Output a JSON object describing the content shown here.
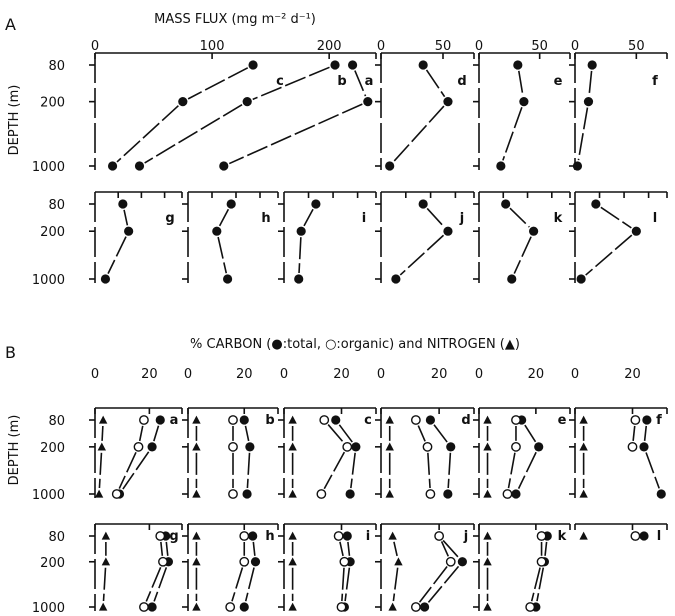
{
  "panel_letters": [
    "A",
    "B"
  ],
  "depth_axis": {
    "label": "DEPTH (m)",
    "ticks": [
      80,
      200,
      1000
    ]
  },
  "chart_data": [
    {
      "type": "line",
      "panel": "A",
      "title": "MASS FLUX (mg m⁻² d⁻¹)",
      "ylabel": "DEPTH (m)",
      "y": [
        80,
        200,
        1000
      ],
      "subplots": [
        {
          "label": "a",
          "xticks": [
            0,
            100,
            200
          ],
          "xlim": [
            0,
            240
          ],
          "series": [
            {
              "values": [
                220,
                233,
                110
              ]
            }
          ]
        },
        {
          "label": "b",
          "xticks": [
            0,
            100,
            200
          ],
          "xlim": [
            0,
            240
          ],
          "series": [
            {
              "values": [
                205,
                130,
                38
              ]
            }
          ]
        },
        {
          "label": "c",
          "xticks": [
            0,
            100,
            200
          ],
          "xlim": [
            0,
            240
          ],
          "series": [
            {
              "values": [
                135,
                75,
                15
              ]
            }
          ]
        },
        {
          "label": "d",
          "xticks": [
            0,
            50
          ],
          "xlim": [
            0,
            75
          ],
          "series": [
            {
              "values": [
                34,
                54,
                7
              ]
            }
          ]
        },
        {
          "label": "e",
          "xticks": [
            0,
            50
          ],
          "xlim": [
            0,
            75
          ],
          "series": [
            {
              "values": [
                32,
                37,
                18
              ]
            }
          ]
        },
        {
          "label": "f",
          "xticks": [
            0,
            50
          ],
          "xlim": [
            0,
            75
          ],
          "series": [
            {
              "values": [
                14,
                11,
                2
              ]
            }
          ]
        },
        {
          "label": "g",
          "xticks": [],
          "xlim": [
            0,
            75
          ],
          "series": [
            {
              "values": [
                24,
                29,
                9
              ]
            }
          ]
        },
        {
          "label": "h",
          "xticks": [],
          "xlim": [
            0,
            75
          ],
          "series": [
            {
              "values": [
                36,
                24,
                33
              ]
            }
          ]
        },
        {
          "label": "i",
          "xticks": [],
          "xlim": [
            0,
            75
          ],
          "series": [
            {
              "values": [
                26,
                14,
                12
              ]
            }
          ]
        },
        {
          "label": "j",
          "xticks": [],
          "xlim": [
            0,
            75
          ],
          "series": [
            {
              "values": [
                34,
                54,
                12
              ]
            }
          ]
        },
        {
          "label": "k",
          "xticks": [],
          "xlim": [
            0,
            75
          ],
          "series": [
            {
              "values": [
                22,
                45,
                27
              ]
            }
          ]
        },
        {
          "label": "l",
          "xticks": [],
          "xlim": [
            0,
            75
          ],
          "series": [
            {
              "values": [
                17,
                50,
                5
              ]
            }
          ]
        }
      ]
    },
    {
      "type": "line",
      "panel": "B",
      "title": "% CARBON (●:total, ○:organic) and NITROGEN (▲)",
      "ylabel": "DEPTH (m)",
      "y": [
        80,
        200,
        1000
      ],
      "xticks": [
        0,
        20
      ],
      "xlim": [
        0,
        32
      ],
      "legend": {
        "total_carbon": "●:total",
        "organic_carbon": "○:organic",
        "nitrogen": "▲"
      },
      "subplots": [
        {
          "label": "a",
          "series": [
            {
              "name": "total",
              "values": [
                24,
                21,
                9
              ]
            },
            {
              "name": "organic",
              "values": [
                18,
                16,
                8
              ]
            },
            {
              "name": "nitrogen",
              "values": [
                3,
                2.5,
                1.5
              ]
            }
          ]
        },
        {
          "label": "b",
          "series": [
            {
              "name": "total",
              "values": [
                20,
                22,
                21
              ]
            },
            {
              "name": "organic",
              "values": [
                16,
                16,
                16
              ]
            },
            {
              "name": "nitrogen",
              "values": [
                3,
                3,
                3
              ]
            }
          ]
        },
        {
          "label": "c",
          "series": [
            {
              "name": "total",
              "values": [
                18,
                25,
                23
              ]
            },
            {
              "name": "organic",
              "values": [
                14,
                22,
                13
              ]
            },
            {
              "name": "nitrogen",
              "values": [
                3,
                3,
                3
              ]
            }
          ]
        },
        {
          "label": "d",
          "series": [
            {
              "name": "total",
              "values": [
                17,
                24,
                23
              ]
            },
            {
              "name": "organic",
              "values": [
                12,
                16,
                17
              ]
            },
            {
              "name": "nitrogen",
              "values": [
                3,
                3,
                3
              ]
            }
          ]
        },
        {
          "label": "e",
          "series": [
            {
              "name": "total",
              "values": [
                15,
                21,
                13
              ]
            },
            {
              "name": "organic",
              "values": [
                13,
                13,
                10
              ]
            },
            {
              "name": "nitrogen",
              "values": [
                3,
                3,
                3
              ]
            }
          ]
        },
        {
          "label": "f",
          "series": [
            {
              "name": "total",
              "values": [
                25,
                24,
                30
              ]
            },
            {
              "name": "organic",
              "values": [
                21,
                20,
                null
              ]
            },
            {
              "name": "nitrogen",
              "values": [
                3,
                3,
                3
              ]
            }
          ]
        },
        {
          "label": "g",
          "series": [
            {
              "name": "total",
              "values": [
                26,
                27,
                21
              ]
            },
            {
              "name": "organic",
              "values": [
                24,
                25,
                18
              ]
            },
            {
              "name": "nitrogen",
              "values": [
                4,
                4,
                3
              ]
            }
          ]
        },
        {
          "label": "h",
          "series": [
            {
              "name": "total",
              "values": [
                23,
                24,
                20
              ]
            },
            {
              "name": "organic",
              "values": [
                20,
                20,
                15
              ]
            },
            {
              "name": "nitrogen",
              "values": [
                3,
                3,
                3
              ]
            }
          ]
        },
        {
          "label": "i",
          "series": [
            {
              "name": "total",
              "values": [
                22,
                23,
                21
              ]
            },
            {
              "name": "organic",
              "values": [
                19,
                21,
                20
              ]
            },
            {
              "name": "nitrogen",
              "values": [
                3,
                3,
                3
              ]
            }
          ]
        },
        {
          "label": "j",
          "series": [
            {
              "name": "total",
              "values": [
                20,
                28,
                15
              ]
            },
            {
              "name": "organic",
              "values": [
                20,
                24,
                12
              ]
            },
            {
              "name": "nitrogen",
              "values": [
                4,
                6,
                4
              ]
            }
          ]
        },
        {
          "label": "k",
          "series": [
            {
              "name": "total",
              "values": [
                24,
                23,
                20
              ]
            },
            {
              "name": "organic",
              "values": [
                22,
                22,
                18
              ]
            },
            {
              "name": "nitrogen",
              "values": [
                3,
                3,
                3
              ]
            }
          ]
        },
        {
          "label": "l",
          "series": [
            {
              "name": "total",
              "values": [
                24,
                null,
                null
              ]
            },
            {
              "name": "organic",
              "values": [
                21,
                null,
                null
              ]
            },
            {
              "name": "nitrogen",
              "values": [
                3,
                null,
                null
              ]
            }
          ]
        }
      ]
    }
  ]
}
